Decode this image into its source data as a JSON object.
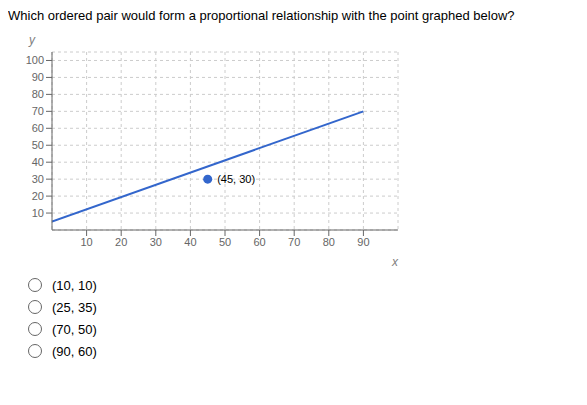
{
  "chart_data": {
    "type": "line",
    "title": "Which ordered pair would form a proportional relationship with the point graphed below?",
    "x": [
      0,
      90
    ],
    "values": [
      5,
      70
    ],
    "color": "#3366CC",
    "points": [
      {
        "x": 45,
        "y": 30,
        "label": "(45, 30)",
        "color": "#3366CC"
      }
    ],
    "xlim": [
      0,
      100
    ],
    "ylim": [
      0,
      105
    ],
    "xticks": [
      10,
      20,
      30,
      40,
      50,
      60,
      70,
      80,
      90
    ],
    "yticks": [
      10,
      20,
      30,
      40,
      50,
      60,
      70,
      80,
      90,
      100
    ],
    "xlabel": "x",
    "ylabel": "y",
    "grid": true,
    "annotations": [
      "(10, 10)",
      "(25, 35)",
      "(70, 50)",
      "(90, 60)"
    ]
  }
}
